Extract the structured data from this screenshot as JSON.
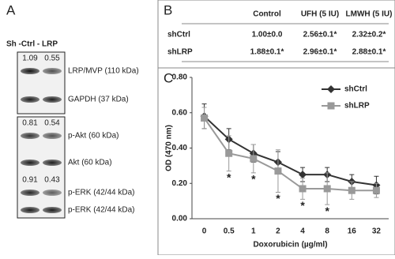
{
  "panel_a": {
    "label": "A",
    "header": "Sh -Ctrl - LRP",
    "blots": [
      {
        "quant": [
          1.09,
          0.55
        ],
        "name": "LRP/MVP (110 kDa)"
      },
      {
        "name": "GAPDH (37 kDa)"
      },
      {
        "quant": [
          0.81,
          0.54
        ],
        "name": "p-Akt (60 kDa)"
      },
      {
        "name": "Akt (60 kDa)"
      },
      {
        "quant": [
          0.91,
          0.43
        ],
        "name": "p-ERK (42/44 kDa)"
      },
      {
        "name": "p-ERK (42/44 kDa)"
      }
    ]
  },
  "panel_b": {
    "label": "B",
    "table": {
      "header": [
        "Control",
        "UFH (5 IU)",
        "LMWH (5 IU)"
      ],
      "rows": [
        [
          "shCtrl",
          "1.00±0.0",
          "2.56±0.1*",
          "2.32±0.2*"
        ],
        [
          "shLRP",
          "1.88±0.1*",
          "2.96±0.1*",
          "2.88±0.1*"
        ]
      ]
    }
  },
  "panel_c": {
    "label": "C"
  },
  "chart_data": {
    "type": "line",
    "x_label": "Doxorubicin (µg/ml)",
    "y_label": "OD (470 nm)",
    "categories": [
      "0",
      "0.5",
      "1",
      "2",
      "4",
      "8",
      "16",
      "32"
    ],
    "ylim": [
      0,
      0.8
    ],
    "yticks": [
      {
        "value": 0,
        "label": "0.00"
      },
      {
        "value": 0.2,
        "label": "0.20"
      },
      {
        "value": 0.4,
        "label": "0.40"
      },
      {
        "value": 0.6,
        "label": "0.60"
      },
      {
        "value": 0.8,
        "label": "0.80"
      }
    ],
    "legend": "upper right",
    "series": [
      {
        "name": "shCtrl",
        "color": "#333333",
        "marker": "diamond",
        "values": [
          0.58,
          0.45,
          0.37,
          0.32,
          0.25,
          0.25,
          0.21,
          0.19
        ],
        "errors": [
          0.07,
          0.06,
          0.05,
          0.06,
          0.04,
          0.04,
          0.04,
          0.05
        ]
      },
      {
        "name": "shLRP",
        "color": "#999999",
        "marker": "square",
        "values": [
          0.57,
          0.37,
          0.34,
          0.27,
          0.17,
          0.17,
          0.16,
          0.16
        ],
        "errors": [
          0.06,
          0.1,
          0.08,
          0.12,
          0.06,
          0.09,
          0.05,
          0.04
        ],
        "markers": [
          null,
          "*",
          "*",
          "*",
          "*",
          "*",
          null,
          null
        ]
      }
    ]
  }
}
